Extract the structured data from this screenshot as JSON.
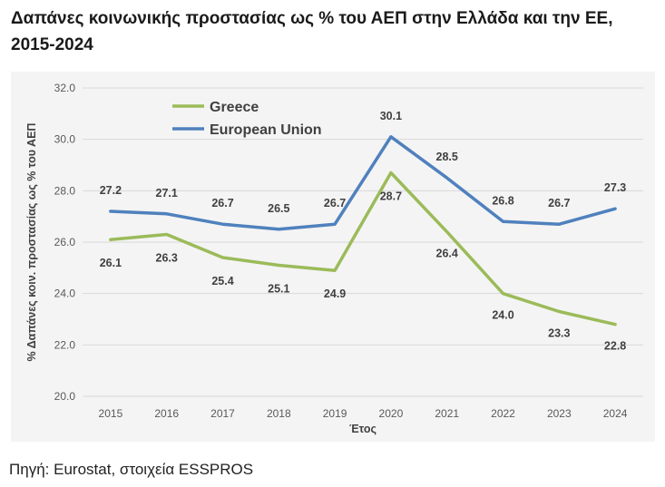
{
  "page": {
    "title": "Δαπάνες κοινωνικής προστασίας ως % του ΑΕΠ στην Ελλάδα και την ΕΕ, 2015-2024",
    "source": "Πηγή: Eurostat, στοιχεία ESSPROS"
  },
  "chart_data": {
    "type": "line",
    "title": "",
    "xlabel": "Έτος",
    "ylabel": "% Δαπάνες κοιν. προστασίας ως % του ΑΕΠ",
    "categories": [
      "2015",
      "2016",
      "2017",
      "2018",
      "2019",
      "2020",
      "2021",
      "2022",
      "2023",
      "2024"
    ],
    "ylim": [
      20.0,
      32.0
    ],
    "yticks": [
      "20.0",
      "22.0",
      "24.0",
      "26.0",
      "28.0",
      "30.0",
      "32.0"
    ],
    "grid": true,
    "legend": "top-left",
    "series": [
      {
        "name": "Greece",
        "color": "#9bbb59",
        "values": [
          26.1,
          26.3,
          25.4,
          25.1,
          24.9,
          28.7,
          26.4,
          24.0,
          23.3,
          22.8
        ],
        "labels": [
          "26.1",
          "26.3",
          "25.4",
          "25.1",
          "24.9",
          "28.7",
          "26.4",
          "24.0",
          "23.3",
          "22.8"
        ]
      },
      {
        "name": "European Union",
        "color": "#4f81bd",
        "values": [
          27.2,
          27.1,
          26.7,
          26.5,
          26.7,
          30.1,
          28.5,
          26.8,
          26.7,
          27.3
        ],
        "labels": [
          "27.2",
          "27.1",
          "26.7",
          "26.5",
          "26.7",
          "30.1",
          "28.5",
          "26.8",
          "26.7",
          "27.3"
        ]
      }
    ]
  }
}
